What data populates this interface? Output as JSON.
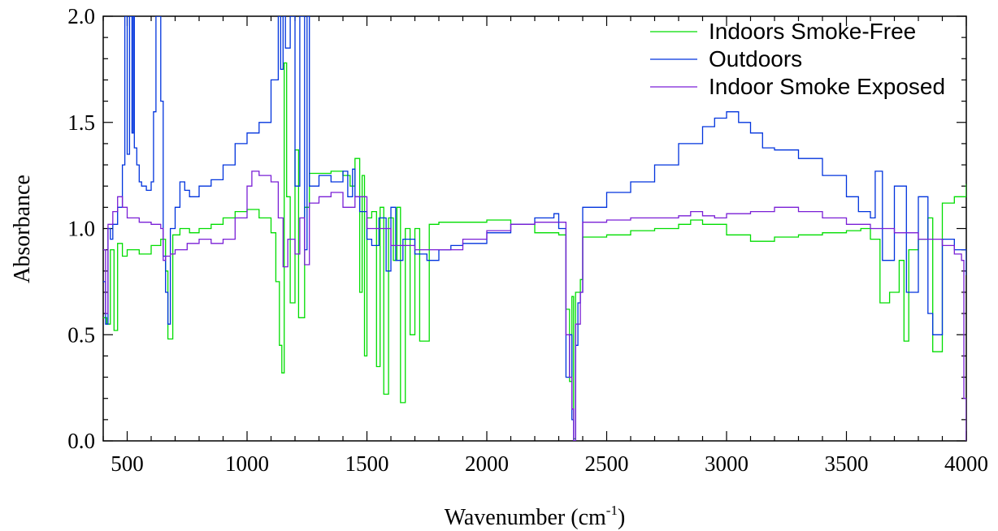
{
  "chart_data": {
    "type": "line",
    "title": "",
    "xlabel": "Wavenumber (cm",
    "xlabel_sup": "-1",
    "xlabel_close": ")",
    "ylabel": "Absorbance",
    "xlim": [
      400,
      4000
    ],
    "ylim": [
      0.0,
      2.0
    ],
    "x_ticks": [
      500,
      1000,
      1500,
      2000,
      2500,
      3000,
      3500,
      4000
    ],
    "x_tick_labels": [
      "500",
      "1000",
      "1500",
      "2000",
      "2500",
      "3000",
      "3500",
      "4000"
    ],
    "y_ticks": [
      0.0,
      0.5,
      1.0,
      1.5,
      2.0
    ],
    "y_tick_labels": [
      "0.0",
      "0.5",
      "1.0",
      "1.5",
      "2.0"
    ],
    "grid": false,
    "legend_position": "top-right",
    "series": [
      {
        "name": "Indoors Smoke-Free",
        "color": "#00dd00",
        "x": [
          400,
          415,
          430,
          445,
          460,
          480,
          500,
          550,
          600,
          640,
          660,
          670,
          690,
          720,
          760,
          800,
          850,
          900,
          950,
          1000,
          1050,
          1100,
          1120,
          1135,
          1145,
          1155,
          1165,
          1180,
          1200,
          1215,
          1240,
          1260,
          1300,
          1350,
          1400,
          1430,
          1450,
          1470,
          1480,
          1490,
          1500,
          1520,
          1540,
          1555,
          1570,
          1590,
          1610,
          1625,
          1640,
          1660,
          1680,
          1700,
          1720,
          1760,
          1800,
          1900,
          2000,
          2100,
          2200,
          2300,
          2330,
          2345,
          2355,
          2362,
          2370,
          2390,
          2400,
          2500,
          2600,
          2700,
          2800,
          2850,
          2900,
          3000,
          3100,
          3200,
          3300,
          3400,
          3500,
          3560,
          3600,
          3640,
          3680,
          3720,
          3740,
          3760,
          3800,
          3840,
          3860,
          3900,
          3950,
          4000
        ],
        "y": [
          0.58,
          0.55,
          0.9,
          0.52,
          0.93,
          0.87,
          0.9,
          0.88,
          0.92,
          0.95,
          0.8,
          0.48,
          0.97,
          1.0,
          0.98,
          1.0,
          1.02,
          1.05,
          1.08,
          1.09,
          1.05,
          0.98,
          0.75,
          0.45,
          0.32,
          1.78,
          1.15,
          0.65,
          1.37,
          0.58,
          1.1,
          1.26,
          1.26,
          1.27,
          1.25,
          1.2,
          1.33,
          0.7,
          1.25,
          0.4,
          1.05,
          1.08,
          0.35,
          1.1,
          0.22,
          1.05,
          0.85,
          1.1,
          0.18,
          1.0,
          0.5,
          1.0,
          0.47,
          1.02,
          1.03,
          1.03,
          1.04,
          1.02,
          0.98,
          0.97,
          0.62,
          0.28,
          0.68,
          0.01,
          0.7,
          0.76,
          0.96,
          0.97,
          0.99,
          1.0,
          1.02,
          1.04,
          1.02,
          0.97,
          0.94,
          0.96,
          0.97,
          0.98,
          0.99,
          1.0,
          0.95,
          0.65,
          0.7,
          0.85,
          0.47,
          0.9,
          0.95,
          1.05,
          0.42,
          1.12,
          1.15,
          1.21
        ]
      },
      {
        "name": "Outdoors",
        "color": "#0033dd",
        "x": [
          400,
          410,
          420,
          430,
          440,
          460,
          480,
          490,
          500,
          510,
          520,
          525,
          530,
          540,
          550,
          560,
          580,
          600,
          610,
          620,
          640,
          650,
          660,
          670,
          680,
          700,
          720,
          740,
          760,
          800,
          850,
          900,
          950,
          1000,
          1050,
          1100,
          1130,
          1140,
          1150,
          1160,
          1180,
          1200,
          1220,
          1240,
          1250,
          1260,
          1300,
          1350,
          1400,
          1420,
          1440,
          1450,
          1470,
          1500,
          1520,
          1550,
          1580,
          1600,
          1620,
          1650,
          1700,
          1750,
          1800,
          1850,
          1900,
          2000,
          2100,
          2200,
          2280,
          2300,
          2330,
          2345,
          2355,
          2362,
          2370,
          2380,
          2390,
          2400,
          2500,
          2600,
          2700,
          2800,
          2900,
          2950,
          3000,
          3050,
          3100,
          3150,
          3200,
          3300,
          3400,
          3500,
          3550,
          3600,
          3620,
          3650,
          3700,
          3750,
          3800,
          3840,
          3860,
          3900,
          3950,
          4000
        ],
        "y": [
          0.75,
          0.55,
          1.0,
          0.95,
          1.02,
          1.1,
          1.3,
          2.0,
          1.35,
          2.0,
          1.45,
          2.0,
          1.38,
          1.3,
          1.22,
          1.2,
          1.18,
          1.22,
          1.55,
          2.0,
          1.6,
          0.87,
          0.7,
          0.55,
          1.0,
          1.1,
          1.22,
          1.18,
          1.15,
          1.2,
          1.23,
          1.3,
          1.4,
          1.45,
          1.5,
          1.7,
          2.0,
          1.75,
          2.0,
          1.85,
          2.0,
          1.2,
          2.0,
          0.9,
          2.0,
          1.2,
          1.25,
          1.22,
          1.27,
          1.15,
          1.28,
          1.15,
          1.08,
          0.95,
          0.92,
          1.05,
          0.8,
          1.1,
          0.85,
          0.95,
          0.88,
          0.85,
          0.9,
          0.92,
          0.93,
          0.98,
          1.02,
          1.05,
          1.07,
          1.0,
          0.3,
          0.5,
          0.1,
          0.0,
          0.45,
          0.65,
          0.7,
          1.1,
          1.17,
          1.22,
          1.3,
          1.4,
          1.48,
          1.52,
          1.55,
          1.5,
          1.45,
          1.38,
          1.37,
          1.33,
          1.25,
          1.15,
          1.08,
          1.05,
          1.27,
          0.85,
          1.2,
          0.7,
          1.15,
          0.6,
          0.5,
          0.95,
          0.9,
          0.78
        ]
      },
      {
        "name": "Indoor Smoke Exposed",
        "color": "#7a1fd6",
        "x": [
          400,
          410,
          420,
          440,
          460,
          480,
          500,
          550,
          600,
          640,
          650,
          660,
          680,
          700,
          750,
          800,
          850,
          900,
          950,
          1000,
          1020,
          1050,
          1100,
          1130,
          1150,
          1170,
          1200,
          1220,
          1240,
          1260,
          1300,
          1350,
          1400,
          1450,
          1500,
          1600,
          1700,
          1800,
          1900,
          2000,
          2100,
          2200,
          2300,
          2330,
          2345,
          2355,
          2362,
          2370,
          2390,
          2400,
          2500,
          2600,
          2700,
          2800,
          2850,
          2900,
          2950,
          3000,
          3100,
          3200,
          3250,
          3300,
          3400,
          3500,
          3600,
          3700,
          3800,
          3900,
          3950,
          3980,
          3990,
          4000
        ],
        "y": [
          0.9,
          0.6,
          1.02,
          1.08,
          1.15,
          1.1,
          1.05,
          1.03,
          1.02,
          1.0,
          0.85,
          0.87,
          0.88,
          0.9,
          0.93,
          0.95,
          0.93,
          0.95,
          1.05,
          1.2,
          1.27,
          1.25,
          1.22,
          1.05,
          0.82,
          0.95,
          0.88,
          1.05,
          0.83,
          1.12,
          1.15,
          1.17,
          1.1,
          1.15,
          1.0,
          0.92,
          0.9,
          0.9,
          0.95,
          0.99,
          1.02,
          1.03,
          1.03,
          0.5,
          0.3,
          0.15,
          0.0,
          0.55,
          0.7,
          1.03,
          1.04,
          1.05,
          1.05,
          1.06,
          1.08,
          1.06,
          1.05,
          1.07,
          1.08,
          1.1,
          1.1,
          1.08,
          1.05,
          1.02,
          1.0,
          0.98,
          0.95,
          0.92,
          0.88,
          0.85,
          0.2,
          0.0
        ]
      }
    ]
  }
}
